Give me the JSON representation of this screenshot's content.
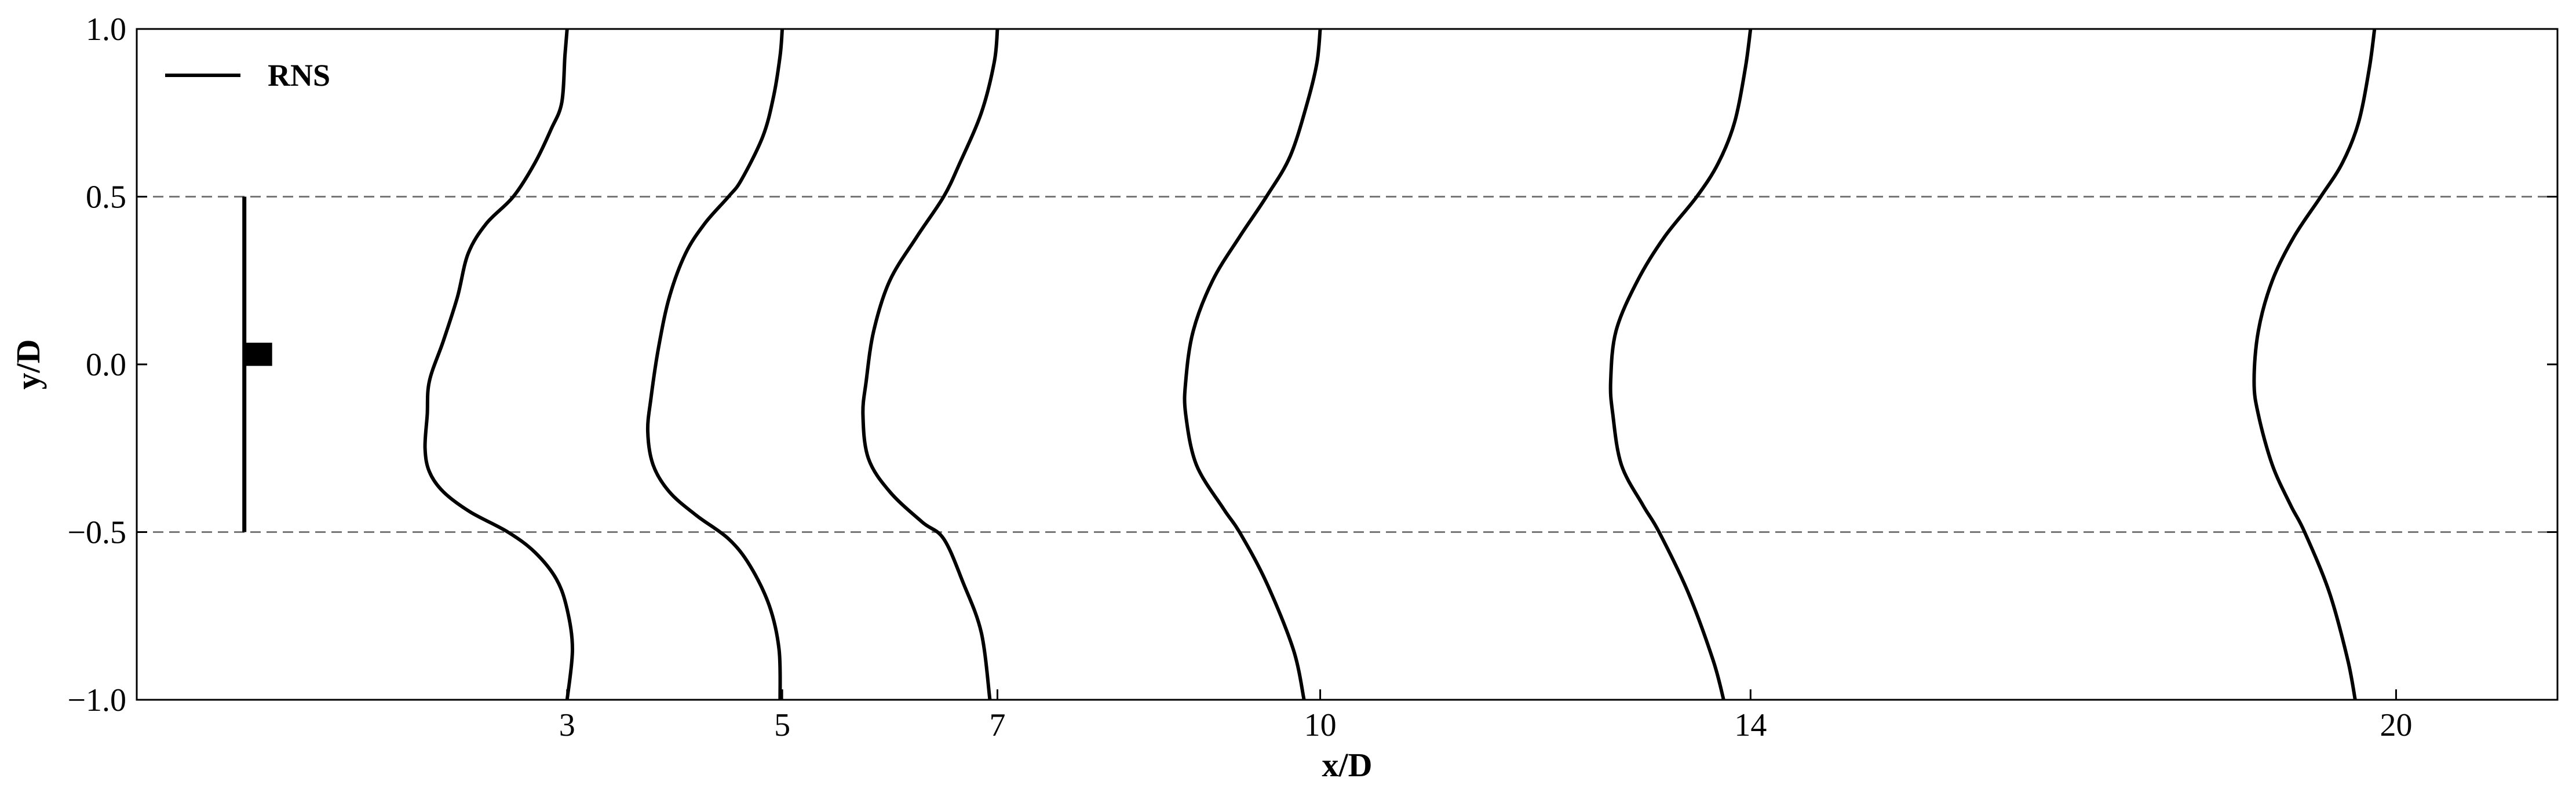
{
  "chart_data": {
    "type": "line",
    "xlabel": "x/D",
    "ylabel": "y/D",
    "xlim": [
      -1,
      21.5
    ],
    "ylim": [
      -1.0,
      1.0
    ],
    "x_ticks": [
      3,
      5,
      7,
      10,
      14,
      20
    ],
    "x_tick_labels": [
      "3",
      "5",
      "7",
      "10",
      "14",
      "20"
    ],
    "y_ticks": [
      -1.0,
      -0.5,
      0.0,
      0.5,
      1.0
    ],
    "y_tick_labels": [
      "−1.0",
      "−0.5",
      "0.0",
      "0.5",
      "1.0"
    ],
    "reference_lines_y": [
      0.5,
      -0.5
    ],
    "legend": {
      "entries": [
        "RNS"
      ],
      "placement": "top-left"
    },
    "grid": false,
    "colors": {
      "series": "#000000",
      "reference": "#777777"
    },
    "turbine": {
      "x": 0,
      "y_range": [
        -0.5,
        0.5
      ],
      "nacelle_y": 0.03
    },
    "series": [
      {
        "name": "RNS",
        "station": 3,
        "points": [
          [
            3.0,
            1.0
          ],
          [
            2.98,
            0.92
          ],
          [
            2.95,
            0.78
          ],
          [
            2.85,
            0.7
          ],
          [
            2.7,
            0.6
          ],
          [
            2.5,
            0.5
          ],
          [
            2.25,
            0.42
          ],
          [
            2.08,
            0.33
          ],
          [
            1.98,
            0.2
          ],
          [
            1.85,
            0.07
          ],
          [
            1.72,
            -0.05
          ],
          [
            1.7,
            -0.15
          ],
          [
            1.68,
            -0.25
          ],
          [
            1.72,
            -0.32
          ],
          [
            1.85,
            -0.38
          ],
          [
            2.1,
            -0.44
          ],
          [
            2.45,
            -0.5
          ],
          [
            2.7,
            -0.56
          ],
          [
            2.9,
            -0.64
          ],
          [
            3.0,
            -0.73
          ],
          [
            3.05,
            -0.85
          ],
          [
            3.0,
            -1.0
          ]
        ]
      },
      {
        "name": "RNS",
        "station": 5,
        "points": [
          [
            5.0,
            1.0
          ],
          [
            4.98,
            0.92
          ],
          [
            4.92,
            0.8
          ],
          [
            4.82,
            0.68
          ],
          [
            4.62,
            0.55
          ],
          [
            4.5,
            0.5
          ],
          [
            4.28,
            0.42
          ],
          [
            4.1,
            0.33
          ],
          [
            3.95,
            0.2
          ],
          [
            3.85,
            0.05
          ],
          [
            3.78,
            -0.1
          ],
          [
            3.75,
            -0.2
          ],
          [
            3.8,
            -0.3
          ],
          [
            3.95,
            -0.38
          ],
          [
            4.2,
            -0.45
          ],
          [
            4.5,
            -0.52
          ],
          [
            4.7,
            -0.6
          ],
          [
            4.88,
            -0.72
          ],
          [
            4.97,
            -0.85
          ],
          [
            4.98,
            -1.0
          ]
        ]
      },
      {
        "name": "RNS",
        "station": 7,
        "points": [
          [
            7.0,
            1.0
          ],
          [
            6.97,
            0.9
          ],
          [
            6.85,
            0.75
          ],
          [
            6.65,
            0.6
          ],
          [
            6.5,
            0.5
          ],
          [
            6.25,
            0.38
          ],
          [
            6.0,
            0.25
          ],
          [
            5.85,
            0.1
          ],
          [
            5.78,
            -0.05
          ],
          [
            5.75,
            -0.15
          ],
          [
            5.8,
            -0.28
          ],
          [
            6.0,
            -0.38
          ],
          [
            6.3,
            -0.47
          ],
          [
            6.5,
            -0.52
          ],
          [
            6.68,
            -0.65
          ],
          [
            6.85,
            -0.8
          ],
          [
            6.93,
            -1.0
          ]
        ]
      },
      {
        "name": "RNS",
        "station": 10,
        "points": [
          [
            10.0,
            1.0
          ],
          [
            9.97,
            0.9
          ],
          [
            9.88,
            0.78
          ],
          [
            9.72,
            0.62
          ],
          [
            9.5,
            0.5
          ],
          [
            9.25,
            0.38
          ],
          [
            9.0,
            0.25
          ],
          [
            8.82,
            0.1
          ],
          [
            8.75,
            -0.05
          ],
          [
            8.75,
            -0.15
          ],
          [
            8.85,
            -0.3
          ],
          [
            9.1,
            -0.43
          ],
          [
            9.25,
            -0.5
          ],
          [
            9.5,
            -0.65
          ],
          [
            9.75,
            -0.85
          ],
          [
            9.85,
            -1.0
          ]
        ]
      },
      {
        "name": "RNS",
        "station": 14,
        "points": [
          [
            14.0,
            1.0
          ],
          [
            13.95,
            0.88
          ],
          [
            13.85,
            0.72
          ],
          [
            13.7,
            0.6
          ],
          [
            13.5,
            0.5
          ],
          [
            13.2,
            0.38
          ],
          [
            12.95,
            0.25
          ],
          [
            12.75,
            0.1
          ],
          [
            12.7,
            -0.05
          ],
          [
            12.72,
            -0.15
          ],
          [
            12.8,
            -0.3
          ],
          [
            13.0,
            -0.42
          ],
          [
            13.15,
            -0.5
          ],
          [
            13.42,
            -0.68
          ],
          [
            13.65,
            -0.88
          ],
          [
            13.75,
            -1.0
          ]
        ]
      },
      {
        "name": "RNS",
        "station": 20,
        "points": [
          [
            19.8,
            1.0
          ],
          [
            19.75,
            0.88
          ],
          [
            19.65,
            0.72
          ],
          [
            19.5,
            0.6
          ],
          [
            19.3,
            0.5
          ],
          [
            19.05,
            0.38
          ],
          [
            18.85,
            0.25
          ],
          [
            18.72,
            0.1
          ],
          [
            18.68,
            -0.05
          ],
          [
            18.72,
            -0.15
          ],
          [
            18.85,
            -0.3
          ],
          [
            19.02,
            -0.42
          ],
          [
            19.15,
            -0.5
          ],
          [
            19.38,
            -0.68
          ],
          [
            19.55,
            -0.88
          ],
          [
            19.62,
            -1.0
          ]
        ]
      }
    ]
  }
}
